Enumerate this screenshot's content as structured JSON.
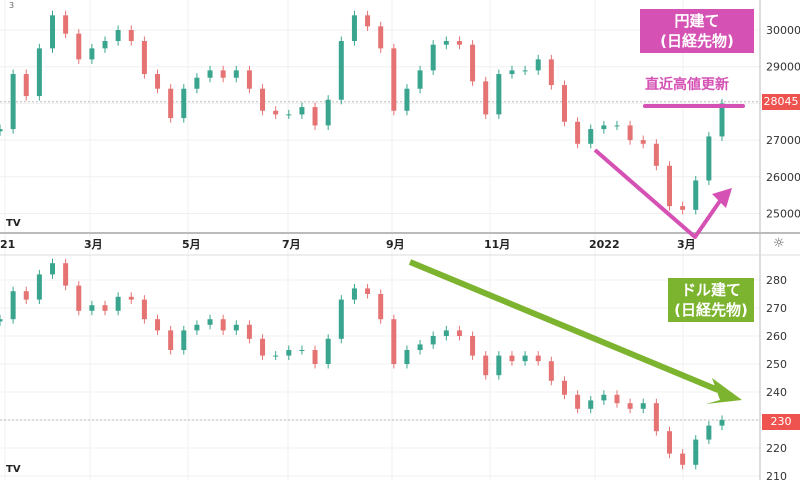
{
  "colors": {
    "up": "#3aa58f",
    "down": "#e57373",
    "yen_annotation": "#d552b4",
    "usd_annotation": "#7cb32f",
    "price_label": "#ef5350"
  },
  "chart_data": [
    {
      "type": "candlestick",
      "pane": "top",
      "series_note": "円建て（日経先物）",
      "x_ticks": [
        "21",
        "3月",
        "5月",
        "7月",
        "9月",
        "11月",
        "2022",
        "3月"
      ],
      "y_ticks": [
        25000,
        26000,
        27000,
        28000,
        29000,
        30000
      ],
      "y_tick_labels": [
        "25000",
        "26000",
        "27000",
        "29000",
        "30000"
      ],
      "ylim": [
        24500,
        30700
      ],
      "last_price": "28045",
      "closes": [
        27300,
        28800,
        28200,
        29500,
        30400,
        29900,
        29200,
        29500,
        29700,
        30000,
        29700,
        28800,
        28400,
        27600,
        28400,
        28700,
        28900,
        28700,
        28900,
        28400,
        27800,
        27700,
        27700,
        27900,
        27400,
        28100,
        29700,
        30400,
        30100,
        29500,
        27800,
        28400,
        28900,
        29600,
        29700,
        29600,
        28600,
        27700,
        28800,
        28900,
        28900,
        29200,
        28500,
        27500,
        26900,
        27300,
        27400,
        27400,
        27000,
        26900,
        26300,
        25200,
        25100,
        25900,
        27100,
        28000
      ],
      "annotations": {
        "label_box": "円建て\n(日経先物)",
        "high_note": "直近高値更新"
      }
    },
    {
      "type": "candlestick",
      "pane": "bottom",
      "y_ticks": [
        210,
        220,
        230,
        240,
        250,
        260,
        270,
        280
      ],
      "y_tick_labels": [
        "210",
        "220",
        "240",
        "250",
        "260",
        "270",
        "280"
      ],
      "ylim": [
        208,
        288
      ],
      "last_price": "230",
      "closes": [
        266,
        276,
        273,
        282,
        286,
        278,
        269,
        271,
        269,
        274,
        273,
        266,
        262,
        255,
        262,
        264,
        266,
        262,
        264,
        259,
        253,
        253,
        255,
        255,
        250,
        259,
        273,
        277,
        275,
        266,
        250,
        255,
        257,
        260,
        262,
        260,
        253,
        246,
        253,
        251,
        253,
        251,
        244,
        239,
        234,
        237,
        239,
        236,
        234,
        236,
        226,
        218,
        214,
        223,
        228,
        230
      ],
      "annotations": {
        "label_box": "ドル建て\n(日経先物)"
      }
    }
  ],
  "ui": {
    "top_left_marker": "3",
    "logo": "TV"
  }
}
